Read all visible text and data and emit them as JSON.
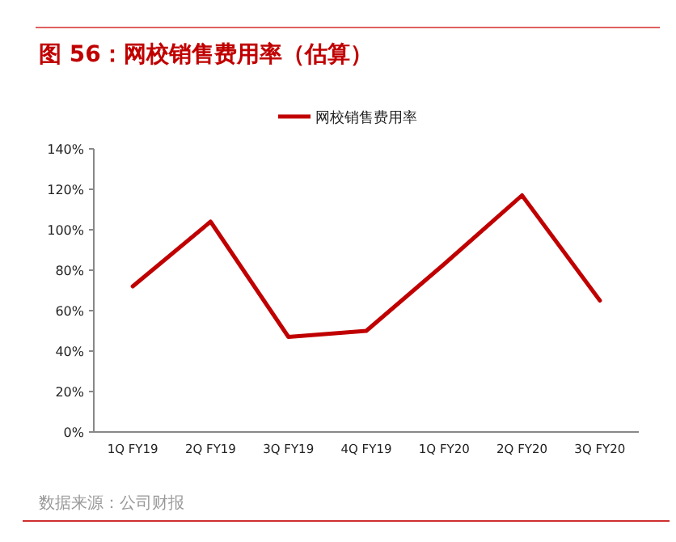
{
  "chart_data": {
    "type": "line",
    "title": "图 56：网校销售费用率（估算）",
    "categories": [
      "1Q FY19",
      "2Q FY19",
      "3Q FY19",
      "4Q FY19",
      "1Q FY20",
      "2Q FY20",
      "3Q FY20"
    ],
    "series": [
      {
        "name": "网校销售费用率",
        "color": "#c00000",
        "values": [
          72,
          104,
          47,
          50,
          83,
          117,
          65
        ]
      }
    ],
    "ylim": [
      0,
      140
    ],
    "yticks": [
      {
        "value": 0,
        "label": "0%"
      },
      {
        "value": 20,
        "label": "20%"
      },
      {
        "value": 40,
        "label": "40%"
      },
      {
        "value": 60,
        "label": "60%"
      },
      {
        "value": 80,
        "label": "80%"
      },
      {
        "value": 100,
        "label": "100%"
      },
      {
        "value": 120,
        "label": "120%"
      },
      {
        "value": 140,
        "label": "140%"
      }
    ],
    "legend": "top",
    "annotations": [
      "数据来源：公司财报"
    ]
  }
}
